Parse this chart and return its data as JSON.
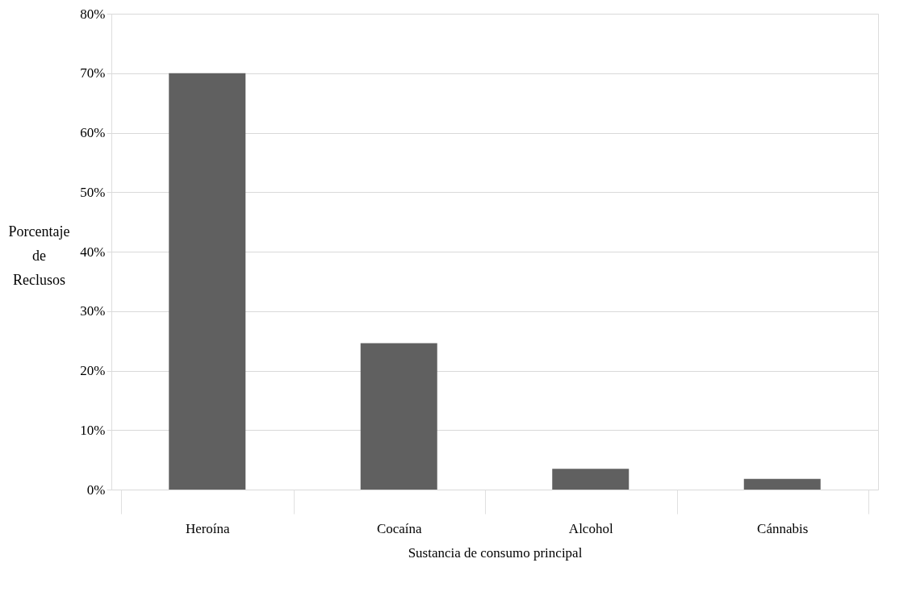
{
  "chart_data": {
    "type": "bar",
    "xlabel": "Sustancia de consumo principal",
    "ylabel": "Porcentaje de Reclusos",
    "categories": [
      "Heroína",
      "Cocaína",
      "Alcohol",
      "Cánnabis"
    ],
    "values": [
      70,
      24.6,
      3.5,
      1.8
    ],
    "color": "#606060",
    "ylim": [
      0,
      80
    ],
    "yticks": [
      {
        "value": 0,
        "label": "0%"
      },
      {
        "value": 10,
        "label": "10%"
      },
      {
        "value": 20,
        "label": "20%"
      },
      {
        "value": 30,
        "label": "30%"
      },
      {
        "value": 40,
        "label": "40%"
      },
      {
        "value": 50,
        "label": "50%"
      },
      {
        "value": 60,
        "label": "60%"
      },
      {
        "value": 70,
        "label": "70%"
      },
      {
        "value": 80,
        "label": "80%"
      }
    ],
    "grid": "y"
  }
}
